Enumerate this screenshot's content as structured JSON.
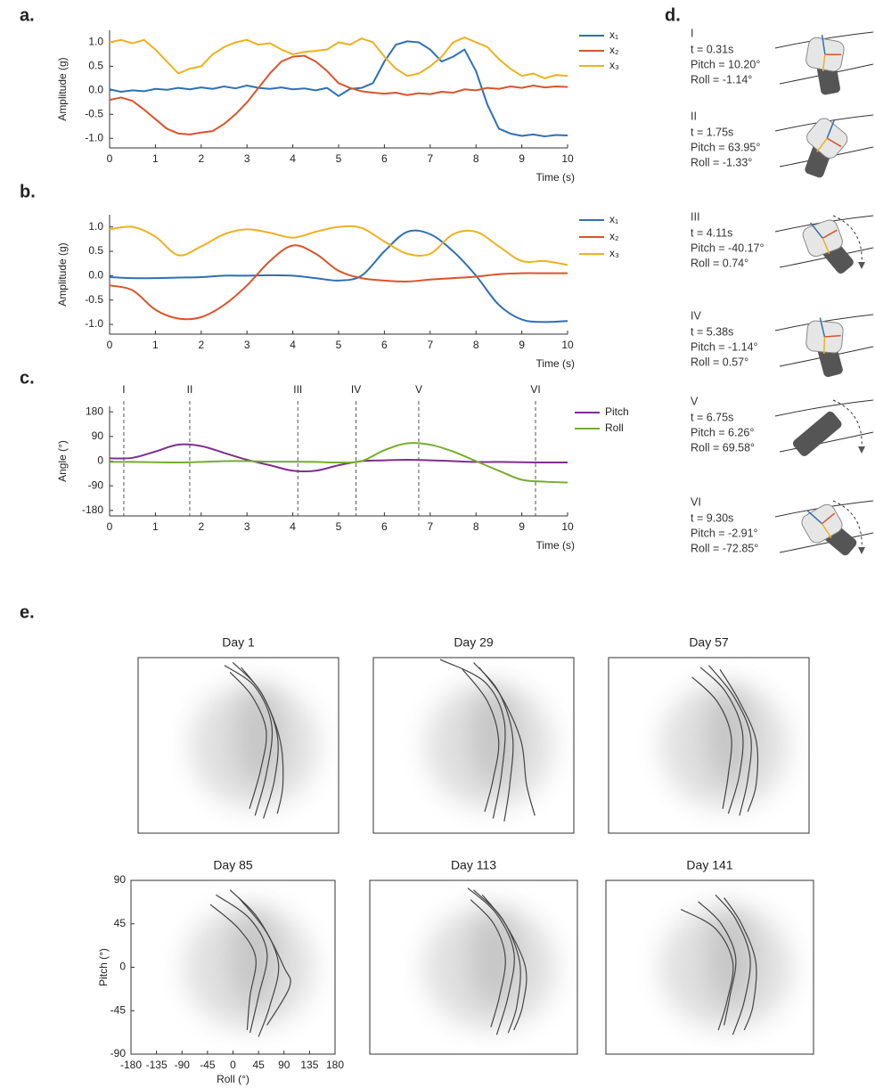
{
  "panel_labels": {
    "a": "a.",
    "b": "b.",
    "c": "c.",
    "d": "d.",
    "e": "e."
  },
  "chart_data": [
    {
      "type": "line",
      "xlabel": "Time (s)",
      "ylabel": "Amplitude (g)",
      "x": [
        0,
        0.25,
        0.5,
        0.75,
        1,
        1.25,
        1.5,
        1.75,
        2,
        2.25,
        2.5,
        2.75,
        3,
        3.25,
        3.5,
        3.75,
        4,
        4.25,
        4.5,
        4.75,
        5,
        5.25,
        5.5,
        5.75,
        6,
        6.25,
        6.5,
        6.75,
        7,
        7.25,
        7.5,
        7.75,
        8,
        8.25,
        8.5,
        8.75,
        9,
        9.25,
        9.5,
        9.75,
        10
      ],
      "series": [
        {
          "name": "x₁",
          "color": "#2f6fb5",
          "values": [
            0.02,
            -0.03,
            0.0,
            -0.02,
            0.03,
            0.01,
            0.05,
            0.02,
            0.06,
            0.03,
            0.08,
            0.04,
            0.1,
            0.05,
            0.03,
            0.06,
            0.02,
            0.04,
            0.0,
            0.05,
            -0.12,
            0.03,
            0.05,
            0.15,
            0.6,
            0.95,
            1.02,
            1.0,
            0.85,
            0.6,
            0.7,
            0.85,
            0.4,
            -0.3,
            -0.8,
            -0.9,
            -0.95,
            -0.92,
            -0.96,
            -0.93,
            -0.94
          ]
        },
        {
          "name": "x₂",
          "color": "#d9542b",
          "values": [
            -0.2,
            -0.15,
            -0.22,
            -0.4,
            -0.6,
            -0.8,
            -0.9,
            -0.92,
            -0.88,
            -0.85,
            -0.7,
            -0.5,
            -0.25,
            0.05,
            0.35,
            0.6,
            0.7,
            0.72,
            0.6,
            0.4,
            0.15,
            0.05,
            -0.02,
            -0.05,
            -0.07,
            -0.05,
            -0.1,
            -0.06,
            -0.08,
            -0.03,
            -0.05,
            0.02,
            0.0,
            0.05,
            0.03,
            0.08,
            0.05,
            0.1,
            0.06,
            0.08,
            0.07
          ]
        },
        {
          "name": "x₃",
          "color": "#edb120",
          "values": [
            1.0,
            1.05,
            0.98,
            1.05,
            0.85,
            0.6,
            0.35,
            0.45,
            0.5,
            0.75,
            0.9,
            1.0,
            1.05,
            0.95,
            0.98,
            0.85,
            0.75,
            0.8,
            0.82,
            0.85,
            1.0,
            0.95,
            1.08,
            1.0,
            0.7,
            0.45,
            0.3,
            0.35,
            0.5,
            0.7,
            1.0,
            1.1,
            1.0,
            0.9,
            0.65,
            0.45,
            0.3,
            0.35,
            0.25,
            0.32,
            0.3
          ]
        }
      ],
      "xlim": [
        0,
        10
      ],
      "xticks": [
        0,
        1,
        2,
        3,
        4,
        5,
        6,
        7,
        8,
        9,
        10
      ],
      "ylim": [
        -1.2,
        1.25
      ],
      "yticks": [
        {
          "value": 1,
          "label": "1.0"
        },
        {
          "value": 0.5,
          "label": "0.5"
        },
        {
          "value": 0,
          "label": "0.0"
        },
        {
          "value": -0.5,
          "label": "-0.5"
        },
        {
          "value": -1,
          "label": "-1.0"
        }
      ]
    },
    {
      "type": "line",
      "xlabel": "Time (s)",
      "ylabel": "Amplitude (g)",
      "x": [
        0,
        0.5,
        1,
        1.5,
        2,
        2.5,
        3,
        3.5,
        4,
        4.5,
        5,
        5.5,
        6,
        6.5,
        7,
        7.5,
        8,
        8.5,
        9,
        9.5,
        10
      ],
      "series": [
        {
          "name": "x₁",
          "color": "#2f6fb5",
          "values": [
            -0.03,
            -0.05,
            -0.05,
            -0.04,
            -0.03,
            0.0,
            0.0,
            0.01,
            0.0,
            -0.05,
            -0.1,
            0.0,
            0.5,
            0.9,
            0.85,
            0.5,
            0.0,
            -0.6,
            -0.9,
            -0.95,
            -0.93
          ]
        },
        {
          "name": "x₂",
          "color": "#d9542b",
          "values": [
            -0.2,
            -0.3,
            -0.7,
            -0.88,
            -0.85,
            -0.6,
            -0.2,
            0.3,
            0.62,
            0.45,
            0.1,
            -0.05,
            -0.1,
            -0.12,
            -0.08,
            -0.05,
            -0.02,
            0.03,
            0.05,
            0.05,
            0.05
          ]
        },
        {
          "name": "x₃",
          "color": "#edb120",
          "values": [
            0.95,
            1.0,
            0.8,
            0.42,
            0.6,
            0.85,
            0.95,
            0.88,
            0.78,
            0.9,
            1.0,
            0.98,
            0.7,
            0.45,
            0.45,
            0.85,
            0.9,
            0.6,
            0.3,
            0.3,
            0.22
          ]
        }
      ],
      "xlim": [
        0,
        10
      ],
      "xticks": [
        0,
        1,
        2,
        3,
        4,
        5,
        6,
        7,
        8,
        9,
        10
      ],
      "ylim": [
        -1.2,
        1.25
      ],
      "yticks": [
        {
          "value": 1,
          "label": "1.0"
        },
        {
          "value": 0.5,
          "label": "0.5"
        },
        {
          "value": 0,
          "label": "0.0"
        },
        {
          "value": -0.5,
          "label": "-0.5"
        },
        {
          "value": -1,
          "label": "-1.0"
        }
      ]
    },
    {
      "type": "line",
      "xlabel": "Time (s)",
      "ylabel": "Angle (°)",
      "x": [
        0,
        0.5,
        1,
        1.5,
        2,
        2.5,
        3,
        3.5,
        4,
        4.5,
        5,
        5.5,
        6,
        6.5,
        7,
        7.5,
        8,
        8.5,
        9,
        9.5,
        10
      ],
      "series": [
        {
          "name": "Pitch",
          "color": "#7e2f8e",
          "values": [
            10,
            12,
            35,
            60,
            55,
            30,
            5,
            -15,
            -35,
            -35,
            -15,
            0,
            3,
            5,
            3,
            0,
            -3,
            -3,
            -4,
            -5,
            -5
          ]
        },
        {
          "name": "Roll",
          "color": "#77ac30",
          "values": [
            -3,
            -3,
            -4,
            -5,
            -3,
            0,
            0,
            -2,
            -2,
            -3,
            -5,
            0,
            40,
            65,
            60,
            35,
            0,
            -35,
            -68,
            -75,
            -78
          ]
        }
      ],
      "markers": [
        {
          "label": "I",
          "x": 0.31
        },
        {
          "label": "II",
          "x": 1.75
        },
        {
          "label": "III",
          "x": 4.11
        },
        {
          "label": "IV",
          "x": 5.38
        },
        {
          "label": "V",
          "x": 6.75
        },
        {
          "label": "VI",
          "x": 9.3
        }
      ],
      "xlim": [
        0,
        10
      ],
      "xticks": [
        0,
        1,
        2,
        3,
        4,
        5,
        6,
        7,
        8,
        9,
        10
      ],
      "ylim": [
        -200,
        200
      ],
      "yticks": [
        180,
        90,
        0,
        -90,
        -180
      ]
    },
    {
      "type": "trajectory",
      "title": "Day 1",
      "xlim": [
        -180,
        180
      ],
      "ylim": [
        -90,
        90
      ],
      "series": [
        {
          "color": "#444444",
          "x": [
            -25,
            30,
            60,
            50,
            30
          ],
          "y": [
            82,
            60,
            20,
            -30,
            -72
          ]
        },
        {
          "color": "#444444",
          "x": [
            -10,
            40,
            70,
            65,
            45
          ],
          "y": [
            85,
            55,
            10,
            -35,
            -75
          ]
        },
        {
          "color": "#444444",
          "x": [
            5,
            45,
            75,
            80,
            70
          ],
          "y": [
            80,
            50,
            5,
            -40,
            -70
          ]
        },
        {
          "color": "#444444",
          "x": [
            -15,
            25,
            50,
            40,
            20
          ],
          "y": [
            75,
            50,
            15,
            -25,
            -65
          ]
        }
      ]
    },
    {
      "type": "trajectory",
      "title": "Day 29",
      "xlim": [
        -180,
        180
      ],
      "ylim": [
        -90,
        90
      ],
      "series": [
        {
          "color": "#444444",
          "x": [
            -60,
            20,
            55,
            50,
            35
          ],
          "y": [
            88,
            65,
            25,
            -30,
            -75
          ]
        },
        {
          "color": "#444444",
          "x": [
            0,
            45,
            70,
            65,
            55
          ],
          "y": [
            85,
            55,
            10,
            -40,
            -78
          ]
        },
        {
          "color": "#444444",
          "x": [
            10,
            50,
            85,
            95,
            110
          ],
          "y": [
            80,
            50,
            5,
            -40,
            -72
          ]
        },
        {
          "color": "#444444",
          "x": [
            -20,
            25,
            45,
            35,
            20
          ],
          "y": [
            78,
            45,
            5,
            -35,
            -68
          ]
        }
      ]
    },
    {
      "type": "trajectory",
      "title": "Day 57",
      "xlim": [
        -180,
        180
      ],
      "ylim": [
        -90,
        90
      ],
      "series": [
        {
          "color": "#444444",
          "x": [
            -15,
            30,
            60,
            55,
            35
          ],
          "y": [
            80,
            55,
            15,
            -30,
            -70
          ]
        },
        {
          "color": "#444444",
          "x": [
            0,
            45,
            75,
            70,
            55
          ],
          "y": [
            82,
            50,
            10,
            -35,
            -72
          ]
        },
        {
          "color": "#444444",
          "x": [
            20,
            55,
            85,
            85,
            70
          ],
          "y": [
            78,
            45,
            5,
            -40,
            -68
          ]
        },
        {
          "color": "#444444",
          "x": [
            -30,
            15,
            40,
            35,
            25
          ],
          "y": [
            70,
            45,
            10,
            -30,
            -65
          ]
        }
      ]
    },
    {
      "type": "trajectory",
      "title": "Day 85",
      "xlim": [
        -180,
        180
      ],
      "ylim": [
        -90,
        90
      ],
      "xticks": [
        -180,
        -135,
        -90,
        -45,
        0,
        45,
        90,
        135,
        180
      ],
      "yticks": [
        90,
        45,
        0,
        -45,
        -90
      ],
      "xlabel": "Roll (°)",
      "ylabel": "Pitch (°)",
      "series": [
        {
          "color": "#444444",
          "x": [
            -30,
            30,
            60,
            45,
            30
          ],
          "y": [
            75,
            50,
            15,
            -30,
            -68
          ]
        },
        {
          "color": "#444444",
          "x": [
            -5,
            45,
            80,
            65,
            45
          ],
          "y": [
            80,
            50,
            5,
            -40,
            -72
          ]
        },
        {
          "color": "#444444",
          "x": [
            10,
            55,
            90,
            100,
            60
          ],
          "y": [
            72,
            40,
            0,
            -20,
            -60
          ]
        },
        {
          "color": "#444444",
          "x": [
            -40,
            10,
            40,
            30,
            25
          ],
          "y": [
            65,
            40,
            10,
            -30,
            -65
          ]
        }
      ]
    },
    {
      "type": "trajectory",
      "title": "Day 113",
      "xlim": [
        -180,
        180
      ],
      "ylim": [
        -90,
        90
      ],
      "series": [
        {
          "color": "#444444",
          "x": [
            -10,
            40,
            70,
            60,
            40
          ],
          "y": [
            82,
            55,
            15,
            -30,
            -70
          ]
        },
        {
          "color": "#444444",
          "x": [
            0,
            50,
            80,
            75,
            60
          ],
          "y": [
            80,
            50,
            5,
            -40,
            -68
          ]
        },
        {
          "color": "#444444",
          "x": [
            15,
            55,
            90,
            85,
            70
          ],
          "y": [
            75,
            45,
            0,
            -40,
            -65
          ]
        },
        {
          "color": "#444444",
          "x": [
            -5,
            35,
            55,
            45,
            30
          ],
          "y": [
            70,
            45,
            10,
            -30,
            -62
          ]
        }
      ]
    },
    {
      "type": "trajectory",
      "title": "Day 141",
      "xlim": [
        -180,
        180
      ],
      "ylim": [
        -90,
        90
      ],
      "series": [
        {
          "color": "#444444",
          "x": [
            -50,
            10,
            40,
            30,
            15
          ],
          "y": [
            60,
            40,
            5,
            -35,
            -65
          ]
        },
        {
          "color": "#444444",
          "x": [
            10,
            45,
            70,
            60,
            40
          ],
          "y": [
            75,
            50,
            10,
            -35,
            -70
          ]
        },
        {
          "color": "#444444",
          "x": [
            25,
            55,
            80,
            75,
            60
          ],
          "y": [
            72,
            45,
            5,
            -40,
            -65
          ]
        },
        {
          "color": "#444444",
          "x": [
            -20,
            20,
            45,
            35,
            25
          ],
          "y": [
            68,
            45,
            10,
            -30,
            -60
          ]
        }
      ]
    }
  ],
  "orientation_list": [
    {
      "label": "I",
      "t": "t = 0.31s",
      "pitch": "Pitch = 10.20°",
      "roll": "Roll = -1.14°"
    },
    {
      "label": "II",
      "t": "t = 1.75s",
      "pitch": "Pitch = 63.95°",
      "roll": "Roll = -1.33°"
    },
    {
      "label": "III",
      "t": "t = 4.11s",
      "pitch": "Pitch = -40.17°",
      "roll": "Roll = 0.74°"
    },
    {
      "label": "IV",
      "t": "t = 5.38s",
      "pitch": "Pitch = -1.14°",
      "roll": "Roll = 0.57°"
    },
    {
      "label": "V",
      "t": "t = 6.75s",
      "pitch": "Pitch = 6.26°",
      "roll": "Roll = 69.58°"
    },
    {
      "label": "VI",
      "t": "t = 9.30s",
      "pitch": "Pitch = -2.91°",
      "roll": "Roll = -72.85°"
    }
  ]
}
